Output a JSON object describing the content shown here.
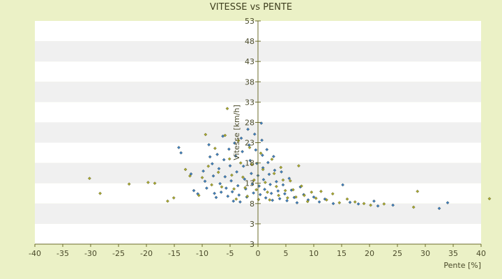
{
  "chart_data": {
    "type": "scatter",
    "title": "VITESSE vs PENTE",
    "xlabel": "Pente [%]",
    "ylabel": "Vitesse [km/h]",
    "xlim": [
      -40,
      40
    ],
    "ylim": [
      3,
      53
    ],
    "x_ticks": [
      "-40",
      "-35",
      "-30",
      "-25",
      "-20",
      "-15",
      "-10",
      "-5",
      "0",
      "5",
      "10",
      "15",
      "20",
      "25",
      "30",
      "35",
      "40"
    ],
    "y_ticks": [
      "3",
      "3",
      "8",
      "13",
      "18",
      "23",
      "28",
      "33",
      "38",
      "43",
      "48",
      "53"
    ],
    "grid": "horizontal alternating bands",
    "colors": {
      "background": "#ebf1c6",
      "plot_band_light": "#ffffff",
      "plot_band_dark": "#f0f0f0",
      "axis": "#6b6b2a",
      "series_a": "#3f7fbf",
      "series_b": "#a8a830"
    },
    "series": [
      {
        "values": [
          [
            -14.2,
            21.8
          ],
          [
            -13.8,
            20.5
          ],
          [
            -12.0,
            15.3
          ],
          [
            -11.5,
            11.2
          ],
          [
            -10.8,
            10.4
          ],
          [
            -9.8,
            16.0
          ],
          [
            -9.5,
            13.5
          ],
          [
            -9.2,
            11.8
          ],
          [
            -8.8,
            22.5
          ],
          [
            -8.6,
            19.5
          ],
          [
            -8.2,
            17.8
          ],
          [
            -8.0,
            14.8
          ],
          [
            -7.8,
            10.5
          ],
          [
            -7.5,
            9.5
          ],
          [
            -7.3,
            20.1
          ],
          [
            -7.0,
            16.6
          ],
          [
            -6.8,
            12.9
          ],
          [
            -6.6,
            10.8
          ],
          [
            -6.3,
            24.6
          ],
          [
            -6.1,
            18.8
          ],
          [
            -5.9,
            14.6
          ],
          [
            -5.7,
            11.8
          ],
          [
            -5.4,
            9.8
          ],
          [
            -5.2,
            21.4
          ],
          [
            -5.0,
            17.3
          ],
          [
            -4.8,
            13.6
          ],
          [
            -4.6,
            10.9
          ],
          [
            -4.4,
            8.6
          ],
          [
            -4.2,
            22.9
          ],
          [
            -4.0,
            19.7
          ],
          [
            -3.8,
            15.8
          ],
          [
            -3.6,
            12.4
          ],
          [
            -3.4,
            10.1
          ],
          [
            -3.2,
            8.4
          ],
          [
            -3.0,
            24.1
          ],
          [
            -2.8,
            20.8
          ],
          [
            -2.6,
            17.2
          ],
          [
            -2.4,
            14.0
          ],
          [
            -2.2,
            11.6
          ],
          [
            -2.0,
            9.6
          ],
          [
            -1.8,
            26.3
          ],
          [
            -1.6,
            22.4
          ],
          [
            -1.4,
            18.6
          ],
          [
            -1.2,
            15.4
          ],
          [
            -1.0,
            12.8
          ],
          [
            -0.8,
            10.6
          ],
          [
            -0.6,
            25.1
          ],
          [
            -0.4,
            21.2
          ],
          [
            -0.2,
            17.9
          ],
          [
            0.0,
            14.9
          ],
          [
            0.2,
            12.3
          ],
          [
            0.4,
            10.2
          ],
          [
            0.6,
            27.8
          ],
          [
            0.7,
            23.6
          ],
          [
            0.8,
            19.9
          ],
          [
            0.9,
            16.8
          ],
          [
            1.0,
            13.9
          ],
          [
            1.2,
            11.5
          ],
          [
            1.4,
            9.4
          ],
          [
            1.6,
            21.3
          ],
          [
            1.8,
            18.1
          ],
          [
            2.0,
            15.2
          ],
          [
            2.2,
            12.7
          ],
          [
            2.4,
            10.5
          ],
          [
            2.6,
            8.8
          ],
          [
            2.8,
            19.6
          ],
          [
            3.0,
            16.2
          ],
          [
            3.3,
            13.4
          ],
          [
            3.6,
            11.1
          ],
          [
            3.9,
            9.2
          ],
          [
            4.2,
            15.8
          ],
          [
            4.5,
            12.6
          ],
          [
            4.8,
            10.4
          ],
          [
            5.2,
            8.7
          ],
          [
            5.6,
            14.2
          ],
          [
            6.0,
            11.3
          ],
          [
            6.5,
            9.5
          ],
          [
            7.0,
            8.2
          ],
          [
            7.6,
            12.1
          ],
          [
            8.2,
            10.2
          ],
          [
            9.0,
            8.9
          ],
          [
            10.0,
            9.6
          ],
          [
            11.0,
            8.4
          ],
          [
            12.0,
            9.1
          ],
          [
            13.5,
            8.0
          ],
          [
            15.2,
            12.6
          ],
          [
            16.5,
            8.3
          ],
          [
            18.0,
            7.9
          ],
          [
            20.8,
            8.6
          ],
          [
            21.5,
            7.4
          ],
          [
            24.2,
            7.6
          ],
          [
            32.5,
            6.8
          ],
          [
            34.0,
            8.2
          ]
        ]
      },
      {
        "values": [
          [
            -30.2,
            14.2
          ],
          [
            -28.3,
            10.5
          ],
          [
            -23.1,
            12.8
          ],
          [
            -19.7,
            13.2
          ],
          [
            -18.5,
            13.0
          ],
          [
            -16.2,
            8.6
          ],
          [
            -15.1,
            9.4
          ],
          [
            -13.0,
            16.4
          ],
          [
            -12.2,
            14.8
          ],
          [
            -10.6,
            10.0
          ],
          [
            -10.0,
            14.4
          ],
          [
            -9.4,
            25.0
          ],
          [
            -8.9,
            17.2
          ],
          [
            -8.3,
            12.6
          ],
          [
            -7.7,
            21.6
          ],
          [
            -7.1,
            15.7
          ],
          [
            -6.5,
            12.1
          ],
          [
            -5.9,
            24.8
          ],
          [
            -5.5,
            31.4
          ],
          [
            -5.1,
            19.0
          ],
          [
            -4.7,
            15.0
          ],
          [
            -4.3,
            11.6
          ],
          [
            -3.9,
            9.1
          ],
          [
            -3.5,
            23.5
          ],
          [
            -3.1,
            18.0
          ],
          [
            -2.7,
            14.5
          ],
          [
            -2.3,
            11.9
          ],
          [
            -1.9,
            9.8
          ],
          [
            -1.5,
            21.8
          ],
          [
            -1.1,
            17.6
          ],
          [
            -0.7,
            13.8
          ],
          [
            -0.3,
            11.4
          ],
          [
            0.1,
            9.0
          ],
          [
            0.5,
            20.4
          ],
          [
            0.9,
            16.4
          ],
          [
            1.3,
            13.2
          ],
          [
            1.7,
            10.8
          ],
          [
            2.1,
            8.9
          ],
          [
            2.5,
            18.9
          ],
          [
            2.9,
            15.4
          ],
          [
            3.3,
            12.2
          ],
          [
            3.7,
            10.0
          ],
          [
            4.1,
            16.9
          ],
          [
            4.5,
            13.8
          ],
          [
            4.9,
            11.2
          ],
          [
            5.3,
            9.4
          ],
          [
            5.8,
            13.6
          ],
          [
            6.3,
            11.4
          ],
          [
            6.8,
            9.6
          ],
          [
            7.3,
            17.3
          ],
          [
            7.8,
            12.3
          ],
          [
            8.3,
            10.0
          ],
          [
            8.9,
            8.5
          ],
          [
            9.6,
            10.8
          ],
          [
            10.4,
            9.3
          ],
          [
            11.3,
            11.0
          ],
          [
            12.3,
            8.9
          ],
          [
            13.4,
            10.4
          ],
          [
            14.6,
            8.2
          ],
          [
            16.0,
            9.1
          ],
          [
            17.4,
            8.4
          ],
          [
            19.0,
            8.0
          ],
          [
            20.2,
            7.6
          ],
          [
            22.6,
            7.9
          ],
          [
            27.9,
            7.1
          ],
          [
            28.6,
            11.0
          ],
          [
            41.5,
            9.2
          ]
        ]
      }
    ]
  }
}
